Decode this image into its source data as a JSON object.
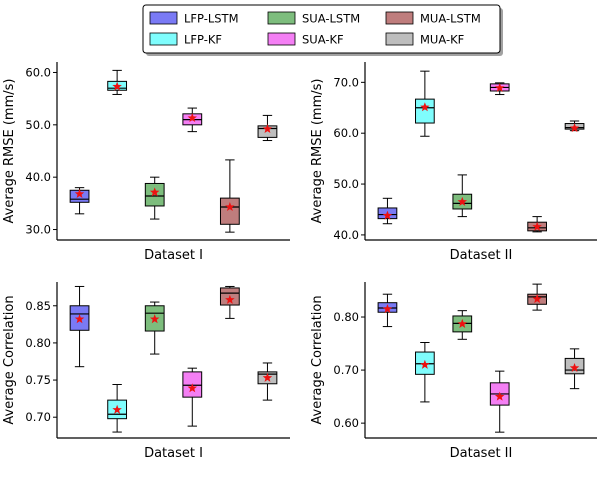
{
  "legend": {
    "location": "top-center",
    "columns": 3,
    "entries": [
      {
        "label": "LFP-LSTM",
        "color": "#7a7af5"
      },
      {
        "label": "LFP-KF",
        "color": "#7ffdfd"
      },
      {
        "label": "SUA-LSTM",
        "color": "#7dbd7d"
      },
      {
        "label": "SUA-KF",
        "color": "#f47ff4"
      },
      {
        "label": "MUA-LSTM",
        "color": "#bf7d7d"
      },
      {
        "label": "MUA-KF",
        "color": "#bebebe"
      }
    ]
  },
  "marker": {
    "symbol": "star",
    "color": "#ee1111",
    "meaning": "mean"
  },
  "chart_data": [
    {
      "type": "box",
      "xlabel": "Dataset I",
      "ylabel": "Average RMSE (mm/s)",
      "ylim": [
        28.0,
        62.0
      ],
      "yticks": [
        30,
        40,
        50,
        60
      ],
      "ytick_labels": [
        "30.0",
        "40.0",
        "50.0",
        "60.0"
      ],
      "grid": false,
      "boxes": [
        {
          "name": "LFP-LSTM",
          "whisker_low": 33.0,
          "q1": 35.2,
          "median": 35.8,
          "q3": 37.5,
          "whisker_high": 38.0,
          "mean": 36.8
        },
        {
          "name": "LFP-KF",
          "whisker_low": 55.8,
          "q1": 56.6,
          "median": 57.0,
          "q3": 58.3,
          "whisker_high": 60.4,
          "mean": 57.3
        },
        {
          "name": "SUA-LSTM",
          "whisker_low": 32.0,
          "q1": 34.5,
          "median": 36.4,
          "q3": 38.8,
          "whisker_high": 40.0,
          "mean": 37.1
        },
        {
          "name": "SUA-KF",
          "whisker_low": 48.7,
          "q1": 50.0,
          "median": 51.0,
          "q3": 52.1,
          "whisker_high": 53.2,
          "mean": 51.3
        },
        {
          "name": "MUA-LSTM",
          "whisker_low": 29.5,
          "q1": 31.0,
          "median": 34.3,
          "q3": 36.0,
          "whisker_high": 43.3,
          "mean": 34.3
        },
        {
          "name": "MUA-KF",
          "whisker_low": 47.0,
          "q1": 47.6,
          "median": 49.3,
          "q3": 49.8,
          "whisker_high": 51.8,
          "mean": 49.2
        }
      ]
    },
    {
      "type": "box",
      "xlabel": "Dataset II",
      "ylabel": "Average RMSE (mm/s)",
      "ylim": [
        39.0,
        74.0
      ],
      "yticks": [
        40,
        50,
        60,
        70
      ],
      "ytick_labels": [
        "40.0",
        "50.0",
        "60.0",
        "70.0"
      ],
      "grid": false,
      "boxes": [
        {
          "name": "LFP-LSTM",
          "whisker_low": 42.2,
          "q1": 43.2,
          "median": 44.0,
          "q3": 45.3,
          "whisker_high": 47.2,
          "mean": 43.8
        },
        {
          "name": "LFP-KF",
          "whisker_low": 59.4,
          "q1": 62.0,
          "median": 65.0,
          "q3": 66.7,
          "whisker_high": 72.2,
          "mean": 65.1
        },
        {
          "name": "SUA-LSTM",
          "whisker_low": 43.6,
          "q1": 45.1,
          "median": 46.2,
          "q3": 48.0,
          "whisker_high": 51.8,
          "mean": 46.5
        },
        {
          "name": "SUA-KF",
          "whisker_low": 67.6,
          "q1": 68.3,
          "median": 69.0,
          "q3": 69.7,
          "whisker_high": 69.9,
          "mean": 68.9
        },
        {
          "name": "MUA-LSTM",
          "whisker_low": 40.6,
          "q1": 40.8,
          "median": 41.4,
          "q3": 42.5,
          "whisker_high": 43.6,
          "mean": 41.6
        },
        {
          "name": "MUA-KF",
          "whisker_low": 60.5,
          "q1": 60.8,
          "median": 61.1,
          "q3": 61.9,
          "whisker_high": 62.4,
          "mean": 61.0
        }
      ]
    },
    {
      "type": "box",
      "xlabel": "Dataset I",
      "ylabel": "Average Correlation",
      "ylim": [
        0.672,
        0.882
      ],
      "yticks": [
        0.7,
        0.75,
        0.8,
        0.85
      ],
      "ytick_labels": [
        "0.70",
        "0.75",
        "0.80",
        "0.85"
      ],
      "grid": false,
      "boxes": [
        {
          "name": "LFP-LSTM",
          "whisker_low": 0.768,
          "q1": 0.817,
          "median": 0.839,
          "q3": 0.85,
          "whisker_high": 0.876,
          "mean": 0.832
        },
        {
          "name": "LFP-KF",
          "whisker_low": 0.68,
          "q1": 0.698,
          "median": 0.704,
          "q3": 0.723,
          "whisker_high": 0.744,
          "mean": 0.71
        },
        {
          "name": "SUA-LSTM",
          "whisker_low": 0.785,
          "q1": 0.816,
          "median": 0.84,
          "q3": 0.85,
          "whisker_high": 0.855,
          "mean": 0.832
        },
        {
          "name": "SUA-KF",
          "whisker_low": 0.688,
          "q1": 0.727,
          "median": 0.743,
          "q3": 0.761,
          "whisker_high": 0.766,
          "mean": 0.739
        },
        {
          "name": "MUA-LSTM",
          "whisker_low": 0.833,
          "q1": 0.851,
          "median": 0.867,
          "q3": 0.874,
          "whisker_high": 0.876,
          "mean": 0.858
        },
        {
          "name": "MUA-KF",
          "whisker_low": 0.723,
          "q1": 0.745,
          "median": 0.758,
          "q3": 0.761,
          "whisker_high": 0.773,
          "mean": 0.753
        }
      ]
    },
    {
      "type": "box",
      "xlabel": "Dataset II",
      "ylabel": "Average Correlation",
      "ylim": [
        0.572,
        0.866
      ],
      "yticks": [
        0.6,
        0.7,
        0.8
      ],
      "ytick_labels": [
        "0.60",
        "0.70",
        "0.80"
      ],
      "grid": false,
      "boxes": [
        {
          "name": "LFP-LSTM",
          "whisker_low": 0.782,
          "q1": 0.809,
          "median": 0.817,
          "q3": 0.827,
          "whisker_high": 0.843,
          "mean": 0.815
        },
        {
          "name": "LFP-KF",
          "whisker_low": 0.64,
          "q1": 0.692,
          "median": 0.712,
          "q3": 0.734,
          "whisker_high": 0.752,
          "mean": 0.71
        },
        {
          "name": "SUA-LSTM",
          "whisker_low": 0.758,
          "q1": 0.772,
          "median": 0.788,
          "q3": 0.802,
          "whisker_high": 0.812,
          "mean": 0.787
        },
        {
          "name": "SUA-KF",
          "whisker_low": 0.583,
          "q1": 0.634,
          "median": 0.655,
          "q3": 0.676,
          "whisker_high": 0.698,
          "mean": 0.65
        },
        {
          "name": "MUA-LSTM",
          "whisker_low": 0.813,
          "q1": 0.824,
          "median": 0.838,
          "q3": 0.843,
          "whisker_high": 0.862,
          "mean": 0.834
        },
        {
          "name": "MUA-KF",
          "whisker_low": 0.665,
          "q1": 0.693,
          "median": 0.7,
          "q3": 0.722,
          "whisker_high": 0.74,
          "mean": 0.704
        }
      ]
    }
  ]
}
